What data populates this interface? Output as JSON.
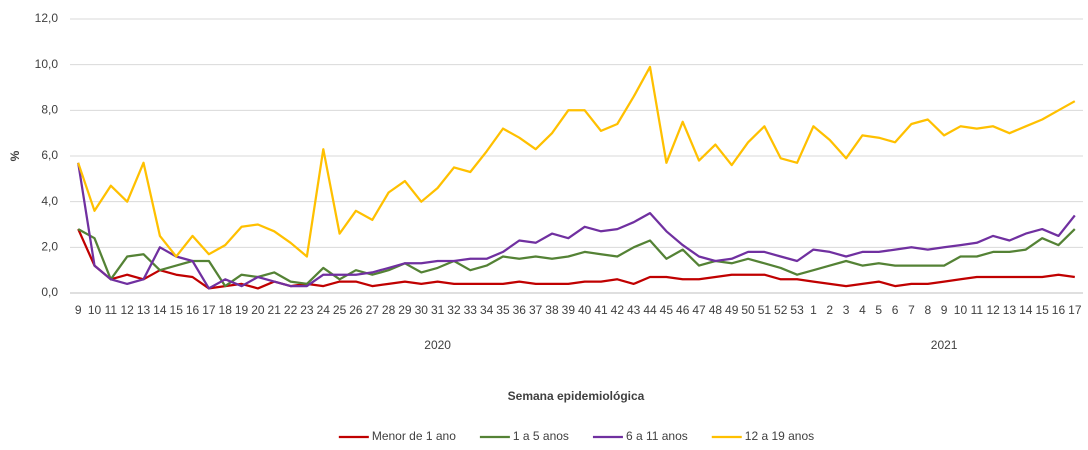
{
  "chart_data": {
    "type": "line",
    "y_label": "%",
    "x_label": "Semana epidemiológica",
    "categories": [
      9,
      10,
      11,
      12,
      13,
      14,
      15,
      16,
      17,
      18,
      19,
      20,
      21,
      22,
      23,
      24,
      25,
      26,
      27,
      28,
      29,
      30,
      31,
      32,
      33,
      34,
      35,
      36,
      37,
      38,
      39,
      40,
      41,
      42,
      43,
      44,
      45,
      46,
      47,
      48,
      49,
      50,
      51,
      52,
      53,
      1,
      2,
      3,
      4,
      5,
      6,
      7,
      8,
      9,
      10,
      11,
      12,
      13,
      14,
      15,
      16,
      17
    ],
    "x_groups": [
      "2020",
      "2021"
    ],
    "ylim": [
      0,
      12
    ],
    "yticks": [
      {
        "value": 0,
        "label": "0,0"
      },
      {
        "value": 2,
        "label": "2,0"
      },
      {
        "value": 4,
        "label": "4,0"
      },
      {
        "value": 6,
        "label": "6,0"
      },
      {
        "value": 8,
        "label": "8,0"
      },
      {
        "value": 10,
        "label": "10,0"
      },
      {
        "value": 12,
        "label": "12,0"
      }
    ],
    "grid": true,
    "legend": "bottom",
    "series": [
      {
        "name": "Menor de 1 ano",
        "color": "#c00000",
        "values": [
          2.8,
          1.2,
          0.6,
          0.8,
          0.6,
          1.0,
          0.8,
          0.7,
          0.2,
          0.3,
          0.4,
          0.2,
          0.5,
          0.3,
          0.4,
          0.3,
          0.5,
          0.5,
          0.3,
          0.4,
          0.5,
          0.4,
          0.5,
          0.4,
          0.4,
          0.4,
          0.4,
          0.5,
          0.4,
          0.4,
          0.4,
          0.5,
          0.5,
          0.6,
          0.4,
          0.7,
          0.7,
          0.6,
          0.6,
          0.7,
          0.8,
          0.8,
          0.8,
          0.6,
          0.6,
          0.5,
          0.4,
          0.3,
          0.4,
          0.5,
          0.3,
          0.4,
          0.4,
          0.5,
          0.6,
          0.7,
          0.7,
          0.7,
          0.7,
          0.7,
          0.8,
          0.7
        ]
      },
      {
        "name": "1 a 5 anos",
        "color": "#548235",
        "values": [
          2.8,
          2.4,
          0.6,
          1.6,
          1.7,
          1.0,
          1.2,
          1.4,
          1.4,
          0.3,
          0.8,
          0.7,
          0.9,
          0.5,
          0.4,
          1.1,
          0.6,
          1.0,
          0.8,
          1.0,
          1.3,
          0.9,
          1.1,
          1.4,
          1.0,
          1.2,
          1.6,
          1.5,
          1.6,
          1.5,
          1.6,
          1.8,
          1.7,
          1.6,
          2.0,
          2.3,
          1.5,
          1.9,
          1.2,
          1.4,
          1.3,
          1.5,
          1.3,
          1.1,
          0.8,
          1.0,
          1.2,
          1.4,
          1.2,
          1.3,
          1.2,
          1.2,
          1.2,
          1.2,
          1.6,
          1.6,
          1.8,
          1.8,
          1.9,
          2.4,
          2.1,
          2.8
        ]
      },
      {
        "name": "6 a 11 anos",
        "color": "#7030a0",
        "values": [
          5.7,
          1.2,
          0.6,
          0.4,
          0.6,
          2.0,
          1.6,
          1.4,
          0.2,
          0.6,
          0.3,
          0.7,
          0.5,
          0.3,
          0.3,
          0.8,
          0.8,
          0.8,
          0.9,
          1.1,
          1.3,
          1.3,
          1.4,
          1.4,
          1.5,
          1.5,
          1.8,
          2.3,
          2.2,
          2.6,
          2.4,
          2.9,
          2.7,
          2.8,
          3.1,
          3.5,
          2.7,
          2.1,
          1.6,
          1.4,
          1.5,
          1.8,
          1.8,
          1.6,
          1.4,
          1.9,
          1.8,
          1.6,
          1.8,
          1.8,
          1.9,
          2.0,
          1.9,
          2.0,
          2.1,
          2.2,
          2.5,
          2.3,
          2.6,
          2.8,
          2.5,
          3.4
        ]
      },
      {
        "name": "12 a 19 anos",
        "color": "#ffc000",
        "values": [
          5.7,
          3.6,
          4.7,
          4.0,
          5.7,
          2.5,
          1.6,
          2.5,
          1.7,
          2.1,
          2.9,
          3.0,
          2.7,
          2.2,
          1.6,
          6.3,
          2.6,
          3.6,
          3.2,
          4.4,
          4.9,
          4.0,
          4.6,
          5.5,
          5.3,
          6.2,
          7.2,
          6.8,
          6.3,
          7.0,
          8.0,
          8.0,
          7.1,
          7.4,
          8.6,
          9.9,
          5.7,
          7.5,
          5.8,
          6.5,
          5.6,
          6.6,
          7.3,
          5.9,
          5.7,
          7.3,
          6.7,
          5.9,
          6.9,
          6.8,
          6.6,
          7.4,
          7.6,
          6.9,
          7.3,
          7.2,
          7.3,
          7.0,
          7.3,
          7.6,
          8.0,
          8.4
        ]
      }
    ]
  }
}
